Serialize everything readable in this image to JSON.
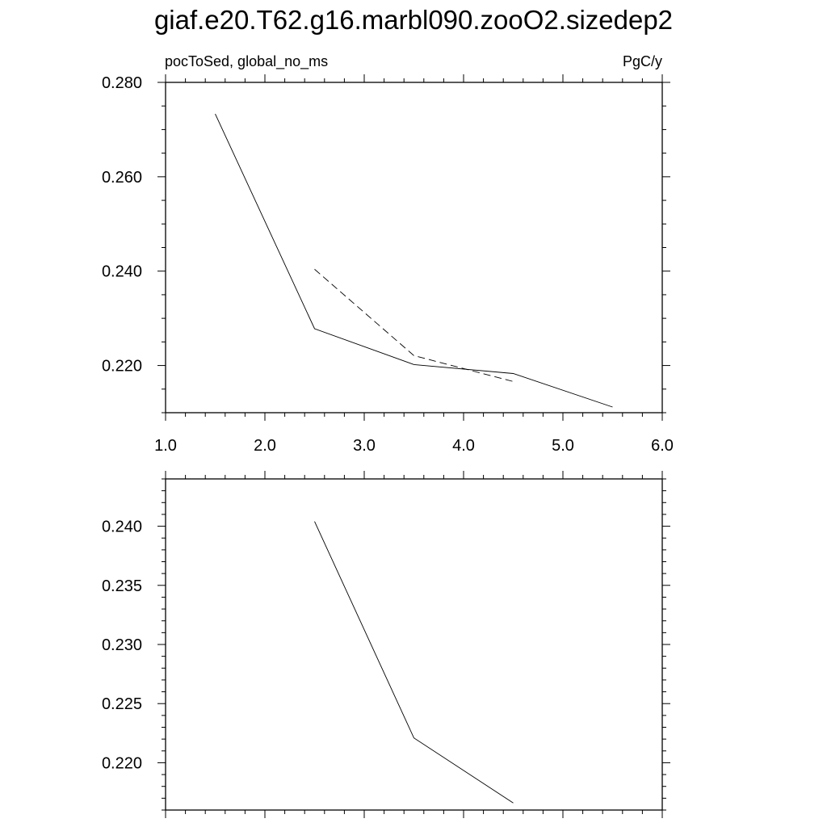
{
  "title": "giaf.e20.T62.g16.marbl090.zooO2.sizedep2",
  "chart_data": [
    {
      "type": "line",
      "left_label": "pocToSed, global_no_ms",
      "right_label": "PgC/y",
      "xlim": [
        1.0,
        6.0
      ],
      "ylim": [
        0.21,
        0.28
      ],
      "x_ticks": [
        "1.0",
        "2.0",
        "3.0",
        "4.0",
        "5.0",
        "6.0"
      ],
      "y_ticks": [
        "0.220",
        "0.240",
        "0.260",
        "0.280"
      ],
      "series": [
        {
          "style": "solid",
          "x": [
            1.5,
            2.5,
            3.5,
            4.5,
            5.5
          ],
          "y": [
            0.2733,
            0.2278,
            0.2202,
            0.2183,
            0.2112
          ]
        },
        {
          "style": "dashed",
          "x": [
            2.5,
            3.5,
            4.5
          ],
          "y": [
            0.2404,
            0.2221,
            0.2166
          ]
        }
      ]
    },
    {
      "type": "line",
      "xlim": [
        1.0,
        6.0
      ],
      "ylim": [
        0.216,
        0.244
      ],
      "y_ticks": [
        "0.220",
        "0.225",
        "0.230",
        "0.235",
        "0.240"
      ],
      "series": [
        {
          "style": "solid",
          "x": [
            2.5,
            3.5,
            4.5
          ],
          "y": [
            0.2404,
            0.2221,
            0.2166
          ]
        }
      ]
    }
  ]
}
